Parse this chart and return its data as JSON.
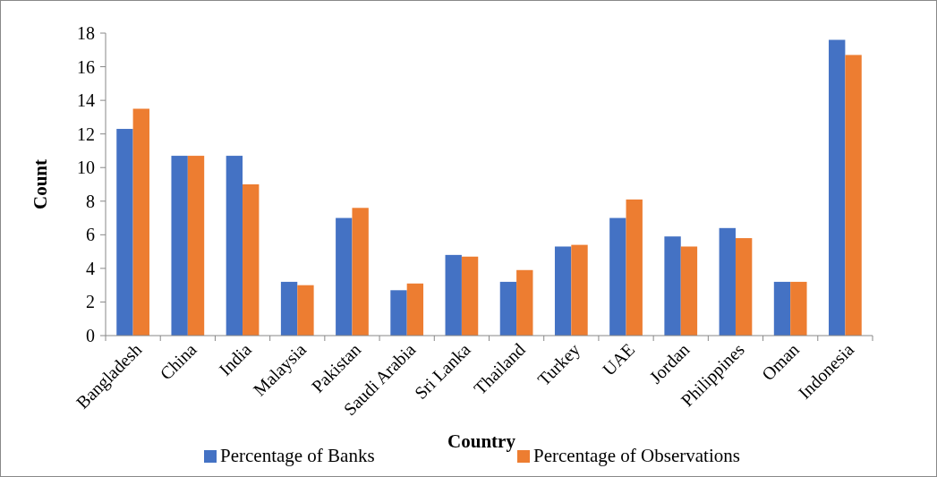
{
  "chart_data": {
    "type": "bar",
    "xlabel": "Country",
    "ylabel": "Count",
    "categories": [
      "Bangladesh",
      "China",
      "India",
      "Malaysia",
      "Pakistan",
      "Saudi Arabia",
      "Sri Lanka",
      "Thailand",
      "Turkey",
      "UAE",
      "Jordan",
      "Philippines",
      "Oman",
      "Indonesia"
    ],
    "series": [
      {
        "name": "Percentage of Banks",
        "color": "#4472c4",
        "values": [
          12.3,
          10.7,
          10.7,
          3.2,
          7.0,
          2.7,
          4.8,
          3.2,
          5.3,
          7.0,
          5.9,
          6.4,
          3.2,
          17.6
        ]
      },
      {
        "name": "Percentage of Observations",
        "color": "#ed7d31",
        "values": [
          13.5,
          10.7,
          9.0,
          3.0,
          7.6,
          3.1,
          4.7,
          3.9,
          5.4,
          8.1,
          5.3,
          5.8,
          3.2,
          16.7
        ]
      }
    ],
    "ylim": [
      0,
      18
    ],
    "yticks": [
      0,
      2,
      4,
      6,
      8,
      10,
      12,
      14,
      16,
      18
    ],
    "legend": "bottom"
  }
}
